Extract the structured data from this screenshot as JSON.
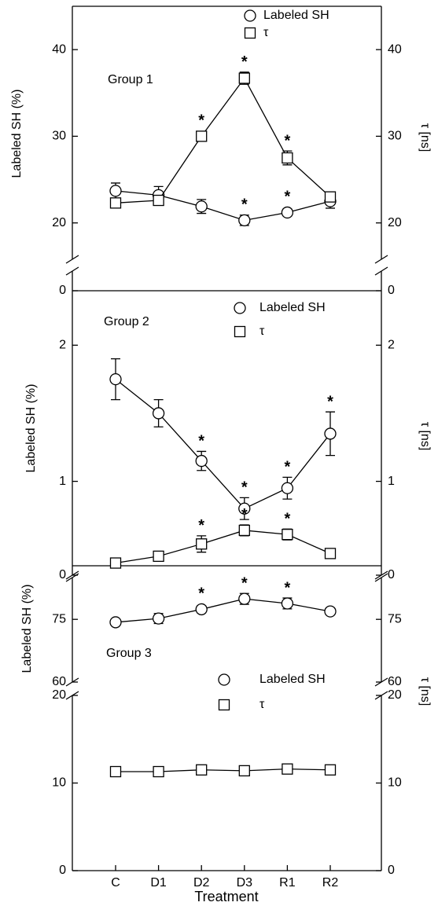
{
  "chart_data": {
    "type": "line",
    "x_label": "Treatment",
    "categories": [
      "C",
      "D1",
      "D2",
      "D3",
      "R1",
      "R2"
    ],
    "significance_mark": "*",
    "panels": [
      {
        "group_label": "Group 1",
        "y_label": "Labeled SH (%)",
        "y2_label": "τ [ns]",
        "segments": [
          {
            "ylim": [
              15.8,
              45
            ],
            "yticks": [
              20,
              30,
              40
            ]
          },
          {
            "ylim": [
              0,
              5
            ],
            "yticks": [
              0
            ]
          }
        ],
        "series": [
          {
            "name": "Labeled SH",
            "marker": "circle",
            "color": "#000000",
            "values": [
              23.7,
              23.2,
              21.9,
              20.3,
              21.2,
              22.5
            ],
            "errors": [
              0.9,
              1.0,
              0.8,
              0.6,
              0.4,
              0.8
            ],
            "starred": [
              3,
              4
            ]
          },
          {
            "name": "τ",
            "marker": "square",
            "color": "#000000",
            "values": [
              22.3,
              22.6,
              30.0,
              36.7,
              27.5,
              23.0
            ],
            "errors": [
              0.3,
              0.3,
              0.4,
              0.7,
              0.8,
              0.3
            ],
            "starred": [
              2,
              3,
              4
            ]
          }
        ]
      },
      {
        "group_label": "Group 2",
        "y_label": "Labeled SH (%)",
        "y2_label": "τ [ns]",
        "segments": [
          {
            "ylim": [
              0.38,
              2.4
            ],
            "yticks": [
              1,
              2
            ]
          }
        ],
        "series": [
          {
            "name": "Labeled SH",
            "marker": "circle",
            "color": "#000000",
            "values": [
              1.75,
              1.5,
              1.15,
              0.8,
              0.95,
              1.35
            ],
            "errors": [
              0.15,
              0.1,
              0.07,
              0.08,
              0.08,
              0.16
            ],
            "starred": [
              2,
              3,
              4,
              5
            ]
          },
          {
            "name": "τ",
            "marker": "square",
            "color": "#000000",
            "values": [
              0.4,
              0.45,
              0.54,
              0.64,
              0.61,
              0.47
            ],
            "errors": [
              0.01,
              0.02,
              0.06,
              0.04,
              0.04,
              0.02
            ],
            "starred": [
              2,
              3,
              4
            ]
          }
        ]
      },
      {
        "group_label": "Group 3",
        "y_label": "Labeled SH (%)",
        "y2_label": "τ [ns]",
        "segments": [
          {
            "ylim": [
              0,
              5
            ],
            "yticks": [
              0
            ]
          },
          {
            "ylim": [
              60,
              85
            ],
            "yticks": [
              60,
              75
            ]
          },
          {
            "ylim": [
              0,
              20
            ],
            "yticks": [
              0,
              10,
              20
            ]
          }
        ],
        "series": [
          {
            "name": "Labeled SH",
            "marker": "circle",
            "color": "#000000",
            "values": [
              74.3,
              75.2,
              77.4,
              79.9,
              78.8,
              76.9
            ],
            "errors": [
              0.3,
              1.2,
              0.8,
              1.3,
              1.3,
              0.5
            ],
            "starred": [
              2,
              3,
              4
            ]
          },
          {
            "name": "τ",
            "marker": "square",
            "color": "#000000",
            "values": [
              11.3,
              11.3,
              11.5,
              11.4,
              11.6,
              11.5
            ],
            "errors": [
              0.1,
              0.1,
              0.1,
              0.1,
              0.1,
              0.1
            ],
            "starred": []
          }
        ]
      }
    ]
  }
}
